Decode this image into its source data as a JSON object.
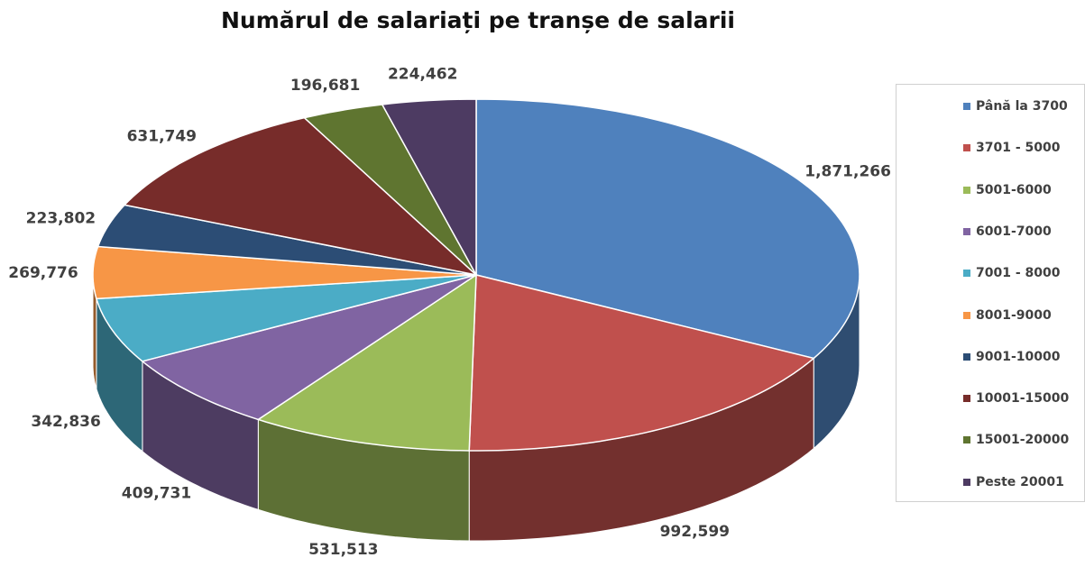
{
  "chart_data": {
    "type": "pie",
    "variant": "3d",
    "title": "Numărul de salariați pe tranșe de salarii",
    "legend_position": "right",
    "categories": [
      "Până la 3700",
      "3701 - 5000",
      "5001-6000",
      "6001-7000",
      "7001 - 8000",
      "8001-9000",
      "9001-10000",
      "10001-15000",
      "15001-20000",
      "Peste 20001"
    ],
    "values": [
      1871266,
      992599,
      531513,
      409731,
      342836,
      269776,
      223802,
      631749,
      196681,
      224462
    ],
    "data_labels": [
      "1,871,266",
      "992,599",
      "531,513",
      "409,731",
      "342,836",
      "269,776",
      "223,802",
      "631,749",
      "196,681",
      "224,462"
    ],
    "colors": [
      "#4F81BD",
      "#C0504D",
      "#9BBB59",
      "#8064A2",
      "#4BACC6",
      "#F79646",
      "#2C4D75",
      "#772C2A",
      "#5F7530",
      "#4D3B62"
    ]
  }
}
